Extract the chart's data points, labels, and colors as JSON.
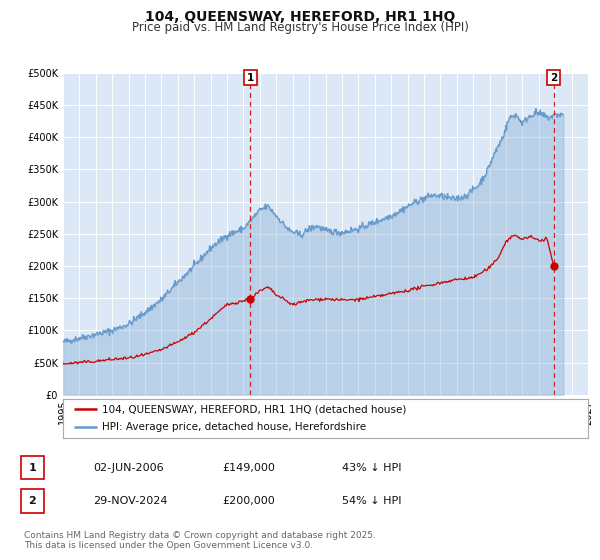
{
  "title": "104, QUEENSWAY, HEREFORD, HR1 1HQ",
  "subtitle": "Price paid vs. HM Land Registry's House Price Index (HPI)",
  "title_fontsize": 10,
  "subtitle_fontsize": 8.5,
  "background_color": "#ffffff",
  "plot_bg_color": "#dce8f5",
  "grid_color": "#ffffff",
  "ylim": [
    0,
    500000
  ],
  "xlim_start": 1995.0,
  "xlim_end": 2027.0,
  "yticks": [
    0,
    50000,
    100000,
    150000,
    200000,
    250000,
    300000,
    350000,
    400000,
    450000,
    500000
  ],
  "ytick_labels": [
    "£0",
    "£50K",
    "£100K",
    "£150K",
    "£200K",
    "£250K",
    "£300K",
    "£350K",
    "£400K",
    "£450K",
    "£500K"
  ],
  "xticks": [
    1995,
    1996,
    1997,
    1998,
    1999,
    2000,
    2001,
    2002,
    2003,
    2004,
    2005,
    2006,
    2007,
    2008,
    2009,
    2010,
    2011,
    2012,
    2013,
    2014,
    2015,
    2016,
    2017,
    2018,
    2019,
    2020,
    2021,
    2022,
    2023,
    2024,
    2025,
    2026,
    2027
  ],
  "red_line_color": "#cc0000",
  "blue_line_color": "#6699cc",
  "blue_fill_alpha": 0.3,
  "marker1_x": 2006.42,
  "marker1_y": 149000,
  "marker2_x": 2024.91,
  "marker2_y": 200000,
  "vline1_x": 2006.42,
  "vline2_x": 2024.91,
  "vline_color": "#cc2222",
  "annotation1_label": "1",
  "annotation2_label": "2",
  "legend_label_red": "104, QUEENSWAY, HEREFORD, HR1 1HQ (detached house)",
  "legend_label_blue": "HPI: Average price, detached house, Herefordshire",
  "table_row1": [
    "1",
    "02-JUN-2006",
    "£149,000",
    "43% ↓ HPI"
  ],
  "table_row2": [
    "2",
    "29-NOV-2024",
    "£200,000",
    "54% ↓ HPI"
  ],
  "footer_text": "Contains HM Land Registry data © Crown copyright and database right 2025.\nThis data is licensed under the Open Government Licence v3.0.",
  "footnote_fontsize": 6.5,
  "tick_fontsize": 7,
  "legend_fontsize": 7.5,
  "table_fontsize": 8
}
